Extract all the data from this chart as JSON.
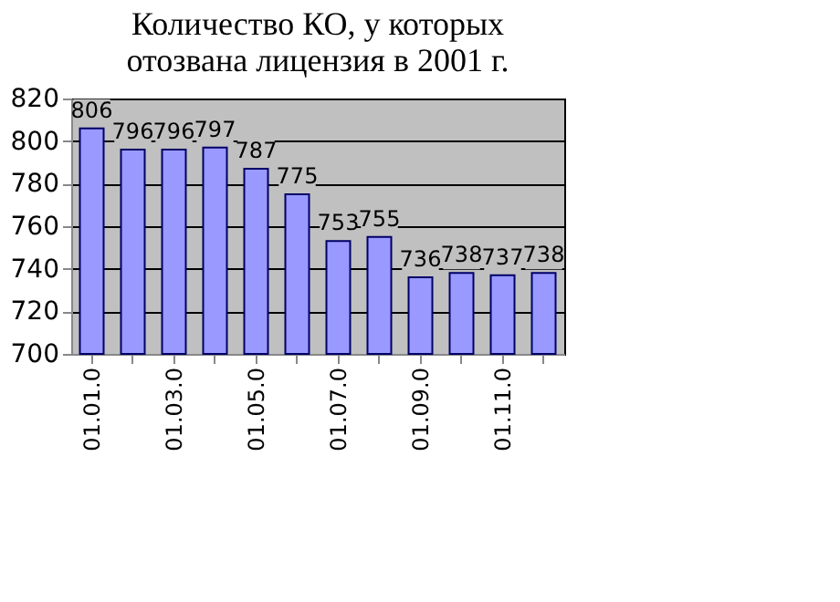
{
  "chart_data": {
    "type": "bar",
    "title": "Количество КО, у которых отозвана лицензия в 2001 г.",
    "categories": [
      "01.01.0",
      null,
      "01.03.0",
      null,
      "01.05.0",
      null,
      "01.07.0",
      null,
      "01.09.0",
      null,
      "01.11.0",
      null
    ],
    "values": [
      806,
      796,
      796,
      797,
      787,
      775,
      753,
      755,
      736,
      738,
      737,
      738
    ],
    "color": "#9999ff",
    "ylim": [
      700,
      820
    ],
    "yticks": [
      700,
      720,
      740,
      760,
      780,
      800,
      820
    ],
    "grid": "y",
    "data_labels": true
  }
}
